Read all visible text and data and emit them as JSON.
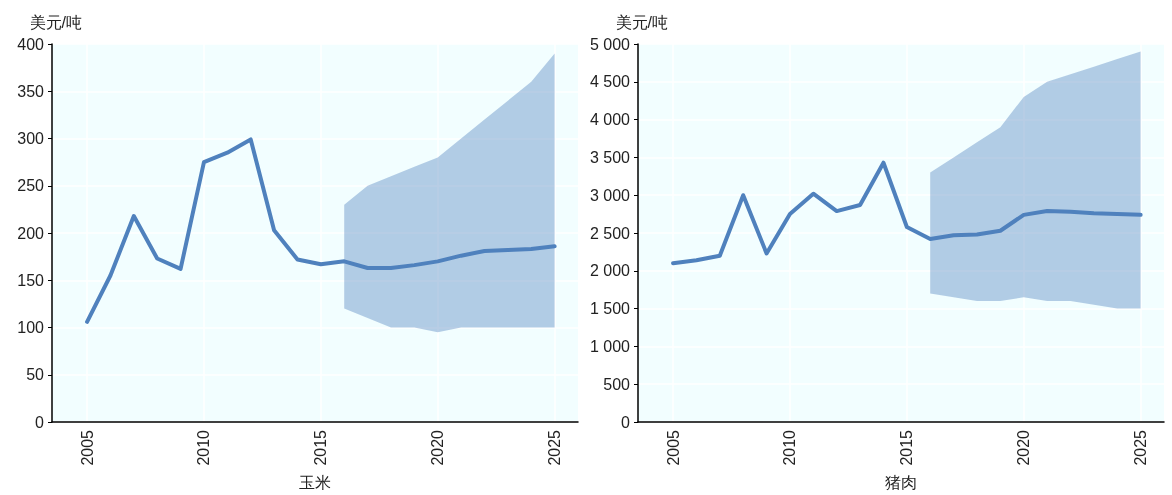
{
  "chart_data": [
    {
      "type": "line",
      "ylabel": "美元/吨",
      "xlabel": "玉米",
      "x": [
        2005,
        2006,
        2007,
        2008,
        2009,
        2010,
        2011,
        2012,
        2013,
        2014,
        2015,
        2016,
        2017,
        2018,
        2019,
        2020,
        2021,
        2022,
        2023,
        2024,
        2025
      ],
      "xlim": [
        2003.5,
        2026
      ],
      "xticks": [
        2005,
        2010,
        2015,
        2020,
        2025
      ],
      "ylim": [
        0,
        400
      ],
      "yticks": [
        0,
        50,
        100,
        150,
        200,
        250,
        300,
        350,
        400
      ],
      "grid": true,
      "series": [
        {
          "color": "#4f81bd",
          "values": [
            106,
            155,
            218,
            173,
            162,
            275,
            285,
            299,
            203,
            172,
            167,
            170,
            163,
            163,
            166,
            170,
            176,
            181,
            182,
            183,
            186
          ],
          "lower": [
            null,
            null,
            null,
            null,
            null,
            null,
            null,
            null,
            null,
            null,
            null,
            120,
            110,
            100,
            100,
            95,
            100,
            100,
            100,
            100,
            100
          ],
          "upper": [
            null,
            null,
            null,
            null,
            null,
            null,
            null,
            null,
            null,
            null,
            null,
            230,
            250,
            260,
            270,
            280,
            300,
            320,
            340,
            360,
            390
          ]
        }
      ]
    },
    {
      "type": "line",
      "ylabel": "美元/吨",
      "xlabel": "猪肉",
      "x": [
        2005,
        2006,
        2007,
        2008,
        2009,
        2010,
        2011,
        2012,
        2013,
        2014,
        2015,
        2016,
        2017,
        2018,
        2019,
        2020,
        2021,
        2022,
        2023,
        2024,
        2025
      ],
      "xlim": [
        2003.5,
        2026
      ],
      "xticks": [
        2005,
        2010,
        2015,
        2020,
        2025
      ],
      "ylim": [
        0,
        5000
      ],
      "yticks": [
        0,
        500,
        {
          "value": 1000,
          "label": "1 000"
        },
        {
          "value": 1500,
          "label": "1 500"
        },
        {
          "value": 2000,
          "label": "2 000"
        },
        {
          "value": 2500,
          "label": "2 500"
        },
        {
          "value": 3000,
          "label": "3 000"
        },
        {
          "value": 3500,
          "label": "3 500"
        },
        {
          "value": 4000,
          "label": "4 000"
        },
        {
          "value": 4500,
          "label": "4 500"
        },
        {
          "value": 5000,
          "label": "5 000"
        }
      ],
      "grid": true,
      "series": [
        {
          "color": "#4f81bd",
          "values": [
            2100,
            2140,
            2200,
            3000,
            2230,
            2750,
            3020,
            2790,
            2870,
            3430,
            2580,
            2420,
            2470,
            2480,
            2530,
            2740,
            2790,
            2780,
            2760,
            2750,
            2740
          ],
          "lower": [
            null,
            null,
            null,
            null,
            null,
            null,
            null,
            null,
            null,
            null,
            null,
            1700,
            1650,
            1600,
            1600,
            1650,
            1600,
            1600,
            1550,
            1500,
            1500
          ],
          "upper": [
            null,
            null,
            null,
            null,
            null,
            null,
            null,
            null,
            null,
            null,
            null,
            3300,
            3500,
            3700,
            3900,
            4300,
            4500,
            4600,
            4700,
            4800,
            4900
          ]
        }
      ]
    }
  ]
}
